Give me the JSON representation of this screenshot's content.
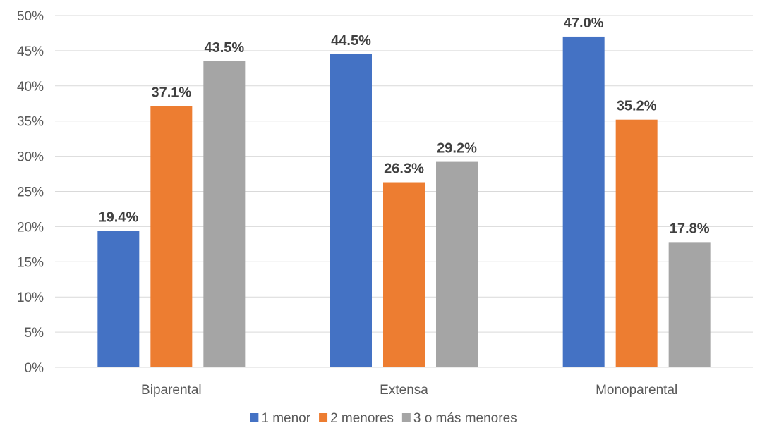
{
  "chart_data": {
    "type": "bar",
    "title": "",
    "xlabel": "",
    "ylabel": "",
    "categories": [
      "Biparental",
      "Extensa",
      "Monoparental"
    ],
    "series": [
      {
        "name": "1 menor",
        "color": "#4472C4",
        "values": [
          19.4,
          44.5,
          47.0
        ],
        "labels": [
          "19.4%",
          "44.5%",
          "47.0%"
        ]
      },
      {
        "name": "2 menores",
        "color": "#ED7D31",
        "values": [
          37.1,
          26.3,
          35.2
        ],
        "labels": [
          "37.1%",
          "26.3%",
          "35.2%"
        ]
      },
      {
        "name": "3 o más menores",
        "color": "#A5A5A5",
        "values": [
          43.5,
          29.2,
          17.8
        ],
        "labels": [
          "43.5%",
          "29.2%",
          "17.8%"
        ]
      }
    ],
    "ylim": [
      0,
      50
    ],
    "yticks": [
      0,
      5,
      10,
      15,
      20,
      25,
      30,
      35,
      40,
      45,
      50
    ],
    "ytick_labels": [
      "0%",
      "5%",
      "10%",
      "15%",
      "20%",
      "25%",
      "30%",
      "35%",
      "40%",
      "45%",
      "50%"
    ],
    "grid": true,
    "legend_position": "bottom",
    "colors": {
      "grid": "#D9D9D9",
      "axis_text": "#595959",
      "data_label": "#404040"
    }
  }
}
